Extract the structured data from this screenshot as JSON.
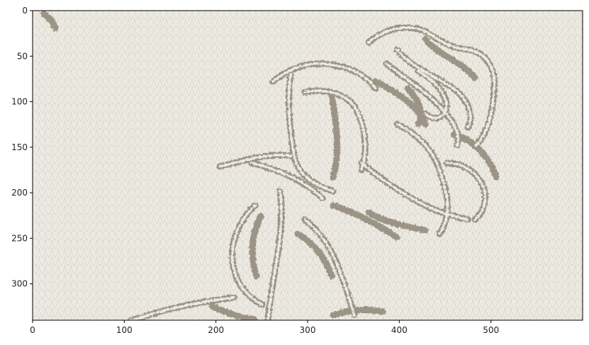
{
  "figure": {
    "kind": "image-display-with-pixel-axes",
    "image_description": "Knitted/embossed texture on cream wool background depicting a line-art rose with stem and leaves in taupe-gray stitching",
    "colors": {
      "background": "#e9e6de",
      "knit_light": "#f1eee7",
      "knit_shadow": "#d6d1c6",
      "stitch_dark": "#8e8576",
      "stitch_mid": "#b3aa9a",
      "stitch_highlight": "#f4f2ed"
    }
  },
  "chart_data": {
    "type": "image",
    "xlim": [
      0,
      600
    ],
    "ylim": [
      340,
      0
    ],
    "x_ticks": [
      0,
      100,
      200,
      300,
      400,
      500
    ],
    "y_ticks": [
      0,
      50,
      100,
      150,
      200,
      250,
      300
    ],
    "x_tick_labels": [
      "0",
      "100",
      "200",
      "300",
      "400",
      "500"
    ],
    "y_tick_labels": [
      "0",
      "50",
      "100",
      "150",
      "200",
      "250",
      "300"
    ],
    "grid": false
  }
}
